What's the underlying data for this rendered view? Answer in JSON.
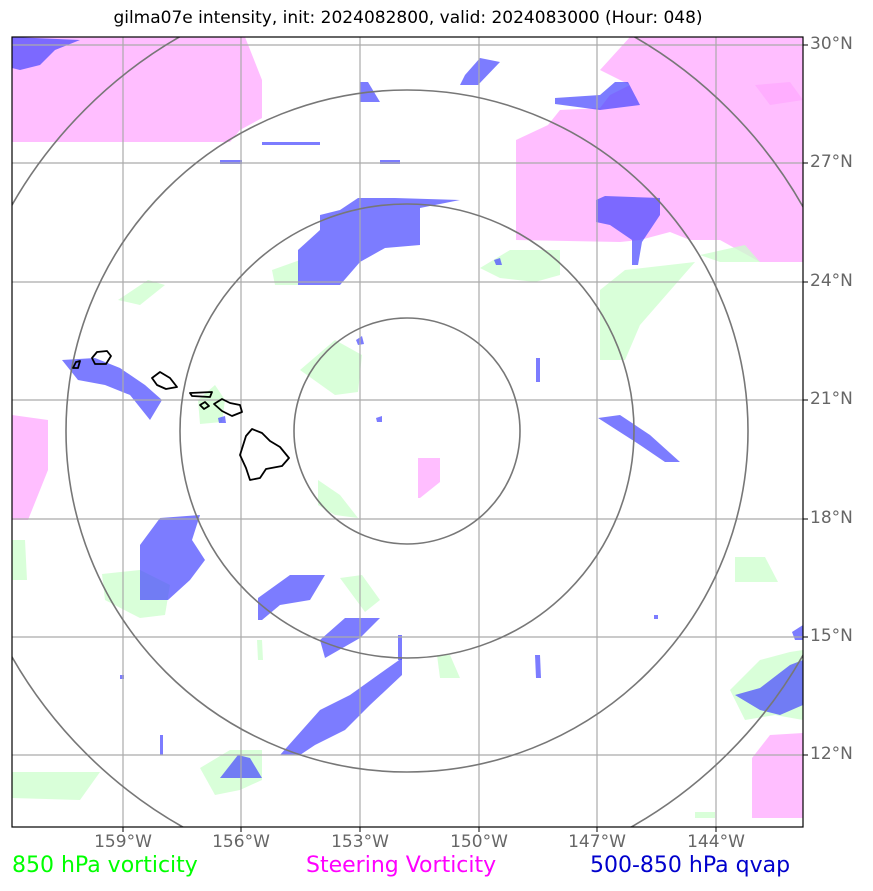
{
  "title": "gilma07e intensity, init: 2024082800, valid: 2024083000 (Hour: 048)",
  "lat_labels": [
    "30°N",
    "27°N",
    "24°N",
    "21°N",
    "18°N",
    "15°N",
    "12°N"
  ],
  "lon_labels": [
    "159°W",
    "156°W",
    "153°W",
    "150°W",
    "147°W",
    "144°W"
  ],
  "legend": {
    "vort850": {
      "label": "850 hPa vorticity",
      "color": "#00ff00"
    },
    "steering": {
      "label": "Steering Vorticity",
      "color": "#ff00ff"
    },
    "qvap": {
      "label": "500-850 hPa qvap",
      "color": "#0000cc"
    }
  },
  "colors": {
    "vort850_fill": "#ccffcc",
    "steering_fill": "#ffa8ff",
    "qvap_fill": "#4444ff",
    "grid": "#aaaaaa",
    "range_rings": "#777777",
    "coastline": "#000000"
  },
  "range_ring_count": 4,
  "map_features": [
    "hawaiian-islands-coastline"
  ]
}
